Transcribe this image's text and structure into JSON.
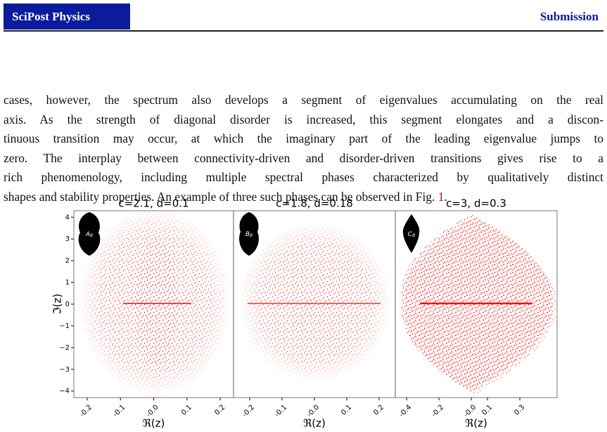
{
  "header": {
    "journal": "SciPost Physics",
    "label": "Submission"
  },
  "body": {
    "lines": [
      "cases, however, the spectrum also develops a segment of eigenvalues accumulating on the real",
      "axis. As the strength of diagonal disorder is increased, this segment elongates and a discon-",
      "tinuous transition may occur, at which the imaginary part of the leading eigenvalue jumps to",
      "zero. The interplay between connectivity-driven and disorder-driven transitions gives rise to a",
      "rich phenomenology, including multiple spectral phases characterized by qualitatively distinct"
    ],
    "last_line": "shapes and stability properties. An example of three such phases can be observed in Fig. ",
    "figure_ref": "1",
    "last_line_end": "."
  },
  "figure": {
    "type": "scatter",
    "color": "#ff0000",
    "ylabel": "ℑ(z)",
    "ylim": [
      -4.3,
      4.3
    ],
    "yticks": [
      4,
      3,
      2,
      1,
      0,
      {
        "value": -1,
        "label": "−1"
      },
      {
        "value": -2,
        "label": "−2"
      },
      {
        "value": -3,
        "label": "−3"
      },
      {
        "value": -4,
        "label": "−4"
      }
    ],
    "panels": [
      {
        "title": "c=2.1, d=0.1",
        "inset": {
          "main": "A",
          "sub": "B"
        },
        "xlabel": "ℜ(z)",
        "xlim": [
          -0.24,
          0.24
        ],
        "xticks": [
          -0.2,
          -0.1,
          {
            "value": 0,
            "label": "-0.0"
          },
          0.1,
          0.2
        ]
      },
      {
        "title": "c=1.8, d=0.18",
        "inset": {
          "main": "B",
          "sub": "B"
        },
        "xlabel": "ℜ(z)",
        "xlim": [
          -0.25,
          0.25
        ],
        "xticks": [
          -0.2,
          -0.1,
          {
            "value": 0,
            "label": "-0.0"
          },
          0.1,
          0.2
        ]
      },
      {
        "title": "c=3, d=0.3",
        "inset": {
          "main": "C",
          "sub": "B"
        },
        "xlabel": "ℜ(z)",
        "xlim": [
          -0.47,
          0.53
        ],
        "xticks": [
          -0.4,
          -0.2,
          {
            "value": 0,
            "label": "-0.0"
          },
          0.1,
          0.3
        ]
      }
    ]
  }
}
